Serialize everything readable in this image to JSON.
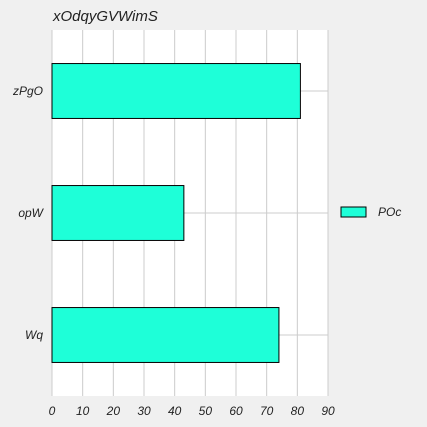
{
  "chart_data": {
    "type": "bar",
    "orientation": "horizontal",
    "title": "xOdqyGVWimS",
    "xlabel": "",
    "ylabel": "",
    "categories": [
      "zPgO",
      "opW",
      "Wq"
    ],
    "series": [
      {
        "name": "POc",
        "values": [
          81,
          43,
          74
        ],
        "color": "#1effd8"
      }
    ],
    "xlim": [
      0,
      90
    ],
    "xticks": [
      0,
      10,
      20,
      30,
      40,
      50,
      60,
      70,
      80,
      90
    ],
    "grid": true,
    "legend": "right"
  },
  "colors": {
    "background": "#f0f0f0",
    "plot_background": "#ffffff",
    "grid": "#cccccc",
    "bar_edge": "#000000"
  }
}
